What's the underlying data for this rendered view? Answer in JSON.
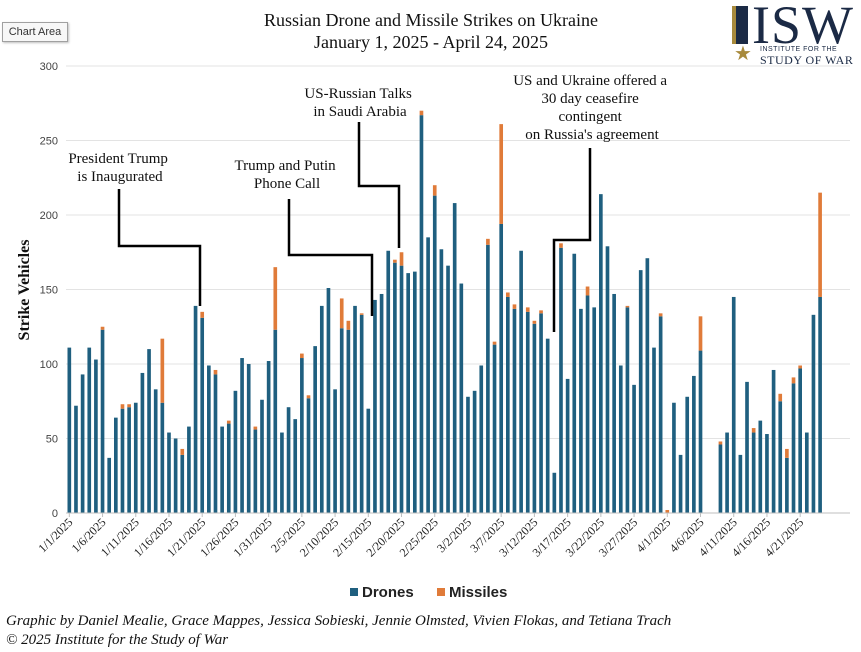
{
  "ui": {
    "chart_area_label": "Chart Area"
  },
  "logo": {
    "text": "ISW",
    "line1": "INSTITUTE FOR THE",
    "line2": "STUDY OF WAR"
  },
  "footer": {
    "line1": "Graphic by Daniel Mealie, Grace Mappes, Jessica Sobieski, Jennie Olmsted, Vivien Flokas, and Tetiana Trach",
    "line2": "© 2025 Institute for the Study of War"
  },
  "colors": {
    "drones": "#1f5f7f",
    "missiles": "#e07b39"
  },
  "chart_data": {
    "type": "bar",
    "stacked": true,
    "title": "Russian Drone and Missile Strikes on Ukraine",
    "subtitle": "January 1, 2025 - April 24, 2025",
    "ylabel": "Strike Vehicles",
    "xlabel": "",
    "ylim": [
      0,
      300
    ],
    "yticks": [
      0,
      50,
      100,
      150,
      200,
      250,
      300
    ],
    "grid": true,
    "legend_position": "bottom",
    "xtick_labels": [
      "1/1/2025",
      "1/6/2025",
      "1/11/2025",
      "1/16/2025",
      "1/21/2025",
      "1/26/2025",
      "1/31/2025",
      "2/5/2025",
      "2/10/2025",
      "2/15/2025",
      "2/20/2025",
      "2/25/2025",
      "3/2/2025",
      "3/7/2025",
      "3/12/2025",
      "3/17/2025",
      "3/22/2025",
      "3/27/2025",
      "4/1/2025",
      "4/6/2025",
      "4/11/2025",
      "4/16/2025",
      "4/21/2025"
    ],
    "series": [
      {
        "name": "Drones",
        "values": [
          111,
          72,
          93,
          111,
          103,
          123,
          37,
          64,
          70,
          71,
          74,
          94,
          110,
          83,
          74,
          54,
          50,
          39,
          58,
          139,
          131,
          99,
          93,
          58,
          60,
          82,
          104,
          100,
          56,
          76,
          102,
          123,
          54,
          71,
          63,
          104,
          77,
          112,
          139,
          151,
          83,
          124,
          123,
          139,
          133,
          70,
          143,
          147,
          176,
          168,
          166,
          161,
          162,
          267,
          185,
          213,
          177,
          166,
          208,
          154,
          78,
          82,
          99,
          180,
          113,
          194,
          145,
          137,
          176,
          135,
          127,
          134,
          117,
          27,
          178,
          90,
          174,
          137,
          146,
          138,
          214,
          179,
          147,
          99,
          138,
          86,
          163,
          171,
          111,
          132,
          0,
          74,
          39,
          78,
          92,
          109,
          0,
          0,
          46,
          54,
          145,
          39,
          88,
          54,
          62,
          53,
          96,
          75,
          37,
          87,
          97,
          54,
          133,
          145,
          0,
          0,
          0,
          0
        ],
        "values_note_unused": ""
      },
      {
        "name": "Missiles",
        "values": [
          0,
          0,
          0,
          0,
          0,
          2,
          0,
          0,
          3,
          2,
          0,
          0,
          0,
          0,
          43,
          0,
          0,
          4,
          0,
          0,
          4,
          0,
          3,
          0,
          2,
          0,
          0,
          0,
          2,
          0,
          0,
          42,
          0,
          0,
          0,
          3,
          2,
          0,
          0,
          0,
          0,
          20,
          6,
          0,
          1,
          0,
          0,
          0,
          0,
          2,
          9,
          0,
          0,
          3,
          0,
          7,
          0,
          0,
          0,
          0,
          0,
          0,
          0,
          4,
          2,
          67,
          3,
          3,
          0,
          3,
          2,
          2,
          0,
          0,
          3,
          0,
          0,
          0,
          6,
          0,
          0,
          0,
          0,
          0,
          1,
          0,
          0,
          0,
          0,
          2,
          2,
          0,
          0,
          0,
          0,
          23,
          0,
          0,
          2,
          0,
          0,
          0,
          0,
          3,
          0,
          0,
          0,
          5,
          6,
          4,
          2,
          0,
          0,
          70,
          0,
          0,
          0,
          0
        ]
      }
    ],
    "annotations": [
      "President Trump is Inaugurated",
      "Trump and Putin Phone Call",
      "US-Russian Talks in Saudi Arabia",
      "US and Ukraine offered a 30 day ceasefire contingent on Russia's agreement"
    ]
  }
}
